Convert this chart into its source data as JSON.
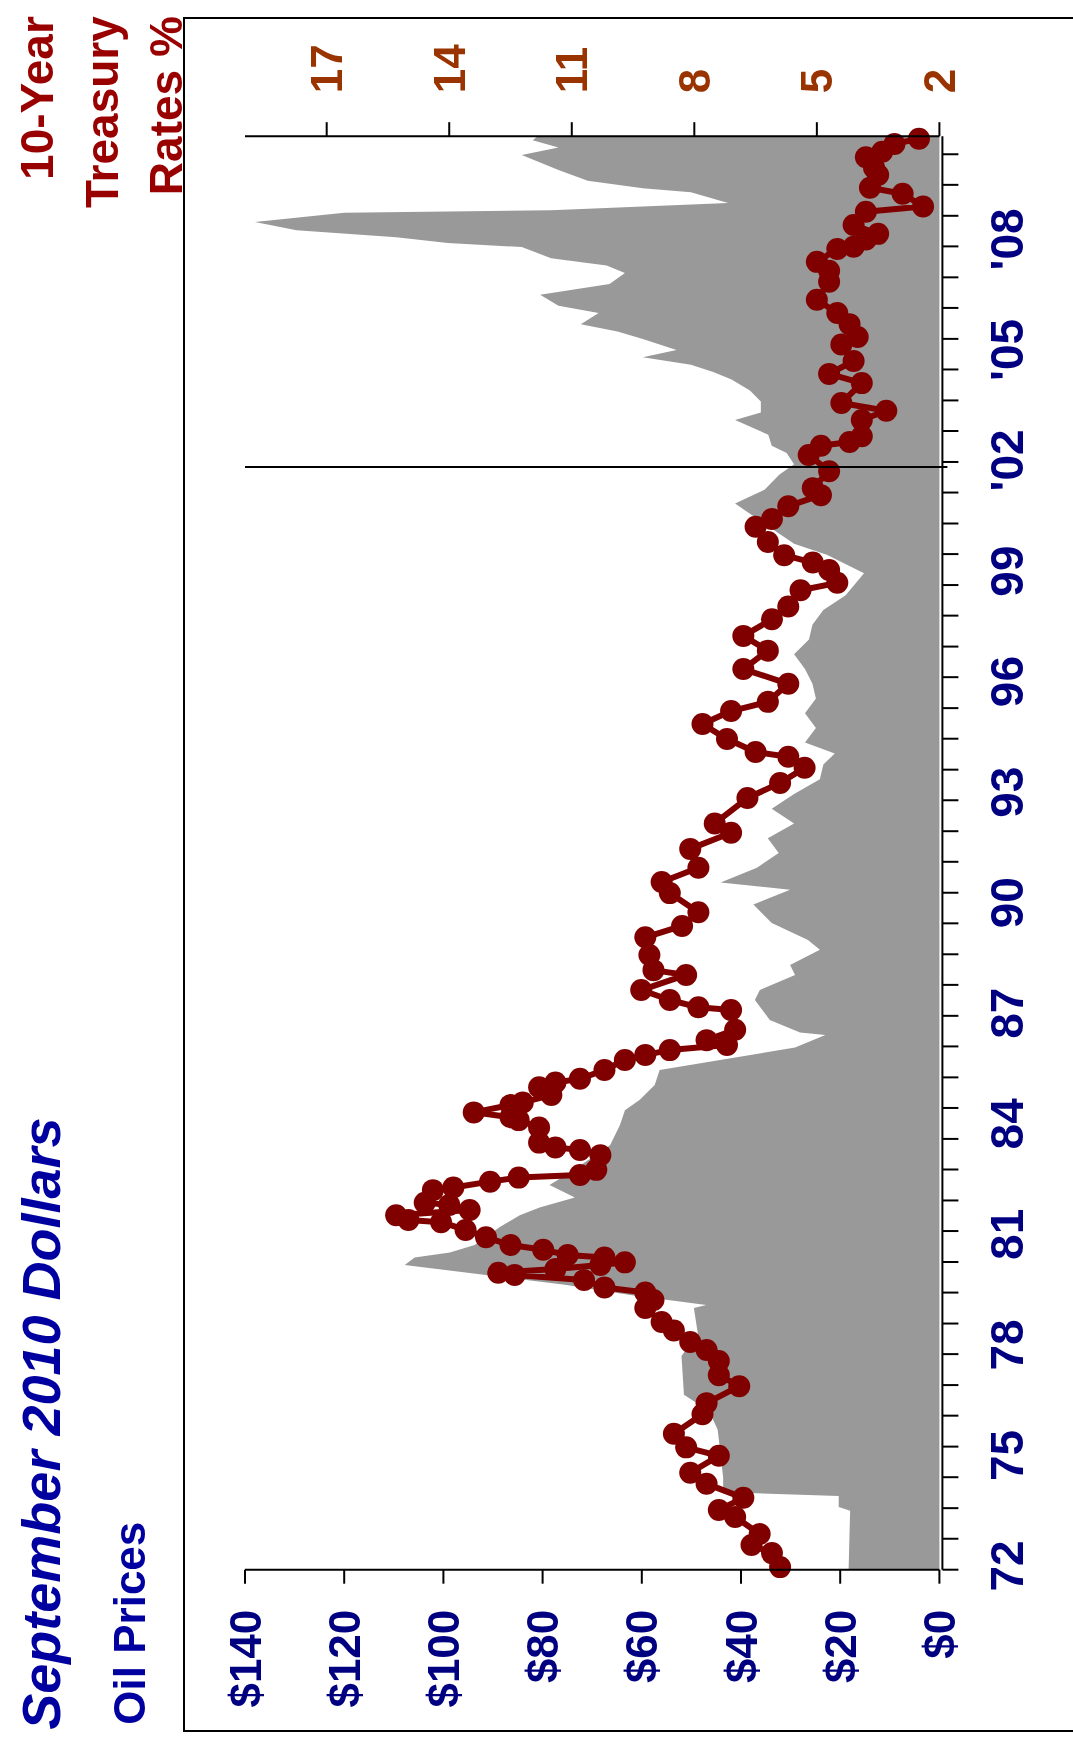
{
  "chart_data": {
    "type": "area",
    "orientation": "horizontal",
    "title": "September 2010 Dollars",
    "annotations": [
      "Oil Prices"
    ],
    "x2label": "10-Year\nTreasury\nRates %",
    "ylim": [
      1971.9,
      2010.8
    ],
    "yticks": [
      {
        "value": 1971.9,
        "label": null
      },
      {
        "value": 1972,
        "label": "72"
      },
      {
        "value": 1972.74,
        "label": null
      },
      {
        "value": 1973.57,
        "label": null
      },
      {
        "value": 1974.41,
        "label": null
      },
      {
        "value": 1975,
        "label": "75"
      },
      {
        "value": 1975.24,
        "label": null
      },
      {
        "value": 1976.08,
        "label": null
      },
      {
        "value": 1976.91,
        "label": null
      },
      {
        "value": 1977.75,
        "label": null
      },
      {
        "value": 1978,
        "label": "78"
      },
      {
        "value": 1978.58,
        "label": null
      },
      {
        "value": 1979.42,
        "label": null
      },
      {
        "value": 1980.25,
        "label": null
      },
      {
        "value": 1981,
        "label": "81"
      },
      {
        "value": 1981.09,
        "label": null
      },
      {
        "value": 1981.92,
        "label": null
      },
      {
        "value": 1982.76,
        "label": null
      },
      {
        "value": 1983.59,
        "label": null
      },
      {
        "value": 1984,
        "label": "84"
      },
      {
        "value": 1984.43,
        "label": null
      },
      {
        "value": 1985.26,
        "label": null
      },
      {
        "value": 1986.1,
        "label": null
      },
      {
        "value": 1986.93,
        "label": null
      },
      {
        "value": 1987,
        "label": "87"
      },
      {
        "value": 1987.77,
        "label": null
      },
      {
        "value": 1988.6,
        "label": null
      },
      {
        "value": 1989.44,
        "label": null
      },
      {
        "value": 1990,
        "label": "90"
      },
      {
        "value": 1990.27,
        "label": null
      },
      {
        "value": 1991.11,
        "label": null
      },
      {
        "value": 1991.94,
        "label": null
      },
      {
        "value": 1992.78,
        "label": null
      },
      {
        "value": 1993,
        "label": "93"
      },
      {
        "value": 1993.61,
        "label": null
      },
      {
        "value": 1994.45,
        "label": null
      },
      {
        "value": 1995.28,
        "label": null
      },
      {
        "value": 1996,
        "label": "96"
      },
      {
        "value": 1996.12,
        "label": null
      },
      {
        "value": 1996.95,
        "label": null
      },
      {
        "value": 1997.79,
        "label": null
      },
      {
        "value": 1998.62,
        "label": null
      },
      {
        "value": 1999,
        "label": "99"
      },
      {
        "value": 1999.46,
        "label": null
      },
      {
        "value": 2000.29,
        "label": null
      },
      {
        "value": 2001.13,
        "label": null
      },
      {
        "value": 2001.96,
        "label": null
      },
      {
        "value": 2002,
        "label": "'02"
      },
      {
        "value": 2002.8,
        "label": null
      },
      {
        "value": 2003.63,
        "label": null
      },
      {
        "value": 2004.47,
        "label": null
      },
      {
        "value": 2005,
        "label": "'05"
      },
      {
        "value": 2005.3,
        "label": null
      },
      {
        "value": 2006.14,
        "label": null
      },
      {
        "value": 2006.97,
        "label": null
      },
      {
        "value": 2007.81,
        "label": null
      },
      {
        "value": 2008,
        "label": "'08"
      },
      {
        "value": 2008.64,
        "label": null
      },
      {
        "value": 2009.48,
        "label": null
      },
      {
        "value": 2010.31,
        "label": null
      }
    ],
    "xlim": [
      140,
      0
    ],
    "xticks": [
      {
        "value": 140,
        "label": "$140"
      },
      {
        "value": 120,
        "label": "$120"
      },
      {
        "value": 100,
        "label": "$100"
      },
      {
        "value": 80,
        "label": "$80"
      },
      {
        "value": 60,
        "label": "$60"
      },
      {
        "value": 40,
        "label": "$40"
      },
      {
        "value": 20,
        "label": "$20"
      },
      {
        "value": 0,
        "label": "$0"
      }
    ],
    "x2lim": [
      19,
      2
    ],
    "x2ticks": [
      17,
      14,
      11,
      8,
      5,
      2
    ],
    "series": [
      {
        "color": "#999999",
        "x": [
          1971.92,
          1973.5,
          1973.6,
          1973.9,
          1974.0,
          1974.4,
          1975.7,
          1976.2,
          1976.65,
          1977.7,
          1978.3,
          1979.0,
          1979.08,
          1979.35,
          1979.63,
          1980.17,
          1980.37,
          1980.51,
          1980.71,
          1981.19,
          1981.52,
          1981.73,
          1982.0,
          1982.34,
          1982.68,
          1983.42,
          1983.97,
          1984.37,
          1984.65,
          1985.05,
          1985.46,
          1986.07,
          1986.41,
          1986.48,
          1986.82,
          1987.36,
          1987.63,
          1988.04,
          1988.31,
          1988.72,
          1988.99,
          1989.45,
          1989.95,
          1990.35,
          1990.55,
          1990.95,
          1991.35,
          1991.75,
          1992.15,
          1992.55,
          1992.95,
          1993.35,
          1993.75,
          1994.05,
          1994.35,
          1994.74,
          1995.14,
          1995.54,
          1995.94,
          1996.34,
          1996.74,
          1997.14,
          1997.54,
          1997.94,
          1998.34,
          1998.94,
          1999.44,
          1999.74,
          2000.83,
          2001.21,
          2001.61,
          2001.9,
          2002.2,
          2002.4,
          2002.7,
          2003.1,
          2003.3,
          2003.6,
          2003.9,
          2004.2,
          2004.4,
          2004.6,
          2004.8,
          2005.0,
          2005.3,
          2005.5,
          2005.7,
          2006.0,
          2006.2,
          2006.5,
          2006.79,
          2007.09,
          2007.29,
          2007.49,
          2007.79,
          2007.9,
          2008.06,
          2008.25,
          2008.47,
          2008.72,
          2008.79,
          2008.99,
          2009.28,
          2009.39,
          2009.59,
          2009.88,
          2010.29,
          2010.49,
          2010.69,
          2010.8
        ],
        "values": [
          18.3,
          18.0,
          20.3,
          20.3,
          43.6,
          43.6,
          44.7,
          46.4,
          51.5,
          52.0,
          48.7,
          49.5,
          47.0,
          62.0,
          75.5,
          107.8,
          105.8,
          98.7,
          93.7,
          88.7,
          84.6,
          80.6,
          73.5,
          78.6,
          74.5,
          66.4,
          64.4,
          63.4,
          60.4,
          57.4,
          56.4,
          29.1,
          23.0,
          28.1,
          34.2,
          37.2,
          36.2,
          29.1,
          30.1,
          24.1,
          26.5,
          33.8,
          37.5,
          30.1,
          44.1,
          36.8,
          32.4,
          34.6,
          29.3,
          33.8,
          29.3,
          24.1,
          23.4,
          21.1,
          27.1,
          24.9,
          27.1,
          24.9,
          25.6,
          27.1,
          29.3,
          26.3,
          25.6,
          23.4,
          18.9,
          15.2,
          22.7,
          29.3,
          41.2,
          35.2,
          32.3,
          29.3,
          30.8,
          33.8,
          34.5,
          41.2,
          36.0,
          36.0,
          38.2,
          41.9,
          45.6,
          50.1,
          59.8,
          53.0,
          59.8,
          64.9,
          72.3,
          68.7,
          76.8,
          80.5,
          66.5,
          63.4,
          67.1,
          78.3,
          84.2,
          99.1,
          109.5,
          129.6,
          138.0,
          120.0,
          78.3,
          42.6,
          50.1,
          59.8,
          70.9,
          76.8,
          84.2,
          76.8,
          82.0,
          81.0
        ]
      },
      {
        "type": "line",
        "axis": "x2",
        "color": "#800000",
        "marker": "circle",
        "line_style": "solid",
        "x": [
          1971.97,
          1972.35,
          1972.57,
          1972.87,
          1973.33,
          1973.52,
          1973.85,
          1974.23,
          1974.53,
          1974.99,
          1975.22,
          1975.59,
          1976.12,
          1976.42,
          1976.88,
          1977.18,
          1977.56,
          1977.86,
          1978.08,
          1978.39,
          1978.62,
          1979.0,
          1979.22,
          1979.42,
          1979.56,
          1979.76,
          1979.9,
          1979.96,
          1980.06,
          1980.17,
          1980.24,
          1980.37,
          1980.44,
          1980.58,
          1980.71,
          1980.92,
          1981.12,
          1981.33,
          1981.39,
          1981.52,
          1981.66,
          1981.8,
          1981.86,
          1982.2,
          1982.27,
          1982.43,
          1982.54,
          1982.61,
          1982.75,
          1983.15,
          1983.29,
          1983.36,
          1983.49,
          1983.9,
          1984.1,
          1984.18,
          1984.31,
          1984.51,
          1984.58,
          1984.78,
          1984.99,
          1985.12,
          1985.22,
          1985.46,
          1985.73,
          1985.87,
          1986.0,
          1986.14,
          1986.27,
          1986.55,
          1987.09,
          1987.16,
          1987.36,
          1987.63,
          1988.04,
          1988.17,
          1988.58,
          1989.06,
          1989.37,
          1989.74,
          1990.26,
          1990.56,
          1990.95,
          1991.46,
          1991.9,
          1992.15,
          1992.84,
          1993.25,
          1993.66,
          1993.96,
          1994.09,
          1994.44,
          1994.85,
          1995.2,
          1995.45,
          1995.94,
          1996.34,
          1996.84,
          1997.24,
          1997.69,
          1998.04,
          1998.48,
          1998.68,
          1999.03,
          1999.23,
          1999.43,
          1999.79,
          2000.2,
          2000.41,
          2000.76,
          2001.06,
          2001.25,
          2001.71,
          2002.15,
          2002.4,
          2002.5,
          2002.66,
          2003.1,
          2003.35,
          2003.56,
          2004.1,
          2004.35,
          2004.7,
          2005.15,
          2005.35,
          2005.7,
          2006.0,
          2006.36,
          2006.85,
          2007.15,
          2007.39,
          2007.74,
          2007.8,
          2008.0,
          2008.15,
          2008.39,
          2008.75,
          2008.89,
          2009.24,
          2009.4,
          2009.75,
          2009.94,
          2010.23,
          2010.38,
          2010.59,
          2010.73
        ],
        "values": [
          5.9,
          6.1,
          6.6,
          6.4,
          7.0,
          7.4,
          6.8,
          7.7,
          8.1,
          7.4,
          8.2,
          8.5,
          7.8,
          7.7,
          6.9,
          7.4,
          7.4,
          7.7,
          8.1,
          8.5,
          8.8,
          9.2,
          9.0,
          9.2,
          10.2,
          10.7,
          12.4,
          12.8,
          11.4,
          10.3,
          9.7,
          10.2,
          11.1,
          11.7,
          12.5,
          13.1,
          13.6,
          14.2,
          15.0,
          15.3,
          13.5,
          14.0,
          14.6,
          14.4,
          13.9,
          13.0,
          12.3,
          10.8,
          10.4,
          10.3,
          10.8,
          11.4,
          11.8,
          11.8,
          12.3,
          12.5,
          13.4,
          12.5,
          12.2,
          11.5,
          11.8,
          11.4,
          10.8,
          10.2,
          9.7,
          9.2,
          8.6,
          7.2,
          7.7,
          7.0,
          7.1,
          7.9,
          8.6,
          9.3,
          8.2,
          9.0,
          9.1,
          9.2,
          8.3,
          7.9,
          8.6,
          8.8,
          7.9,
          8.1,
          7.1,
          7.5,
          6.7,
          5.9,
          5.3,
          5.7,
          6.5,
          7.2,
          7.8,
          7.1,
          6.2,
          5.7,
          6.8,
          6.2,
          6.8,
          6.1,
          5.7,
          5.4,
          4.5,
          4.7,
          5.1,
          5.8,
          6.2,
          6.5,
          6.1,
          5.7,
          4.9,
          5.1,
          4.7,
          5.2,
          4.9,
          4.2,
          3.9,
          3.9,
          3.3,
          4.4,
          3.9,
          4.7,
          4.1,
          4.4,
          4.0,
          4.2,
          4.5,
          5.0,
          4.7,
          4.7,
          5.0,
          4.5,
          4.1,
          3.8,
          3.5,
          4.1,
          3.8,
          2.4,
          2.9,
          3.7,
          3.5,
          3.6,
          3.8,
          3.4,
          3.1,
          2.5
        ]
      }
    ],
    "ref_lines": [
      {
        "axis": "y",
        "value": 2001.82,
        "color": "#000000"
      }
    ]
  }
}
